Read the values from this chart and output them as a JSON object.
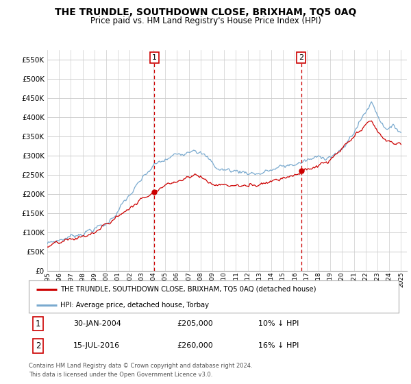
{
  "title": "THE TRUNDLE, SOUTHDOWN CLOSE, BRIXHAM, TQ5 0AQ",
  "subtitle": "Price paid vs. HM Land Registry's House Price Index (HPI)",
  "ylabel_ticks": [
    0,
    50000,
    100000,
    150000,
    200000,
    250000,
    300000,
    350000,
    400000,
    450000,
    500000,
    550000
  ],
  "ylim": [
    0,
    575000
  ],
  "xlim_start": 1995.0,
  "xlim_end": 2025.5,
  "sale1_year": 2004.08,
  "sale1_price": 205000,
  "sale1_label": "1",
  "sale1_date": "30-JAN-2004",
  "sale1_pct": "10%",
  "sale2_year": 2016.54,
  "sale2_price": 260000,
  "sale2_label": "2",
  "sale2_date": "15-JUL-2016",
  "sale2_pct": "16%",
  "hpi_color": "#7aaacf",
  "price_color": "#cc0000",
  "grid_color": "#cccccc",
  "background_color": "#ffffff",
  "legend_line1": "THE TRUNDLE, SOUTHDOWN CLOSE, BRIXHAM, TQ5 0AQ (detached house)",
  "legend_line2": "HPI: Average price, detached house, Torbay",
  "footer1": "Contains HM Land Registry data © Crown copyright and database right 2024.",
  "footer2": "This data is licensed under the Open Government Licence v3.0."
}
